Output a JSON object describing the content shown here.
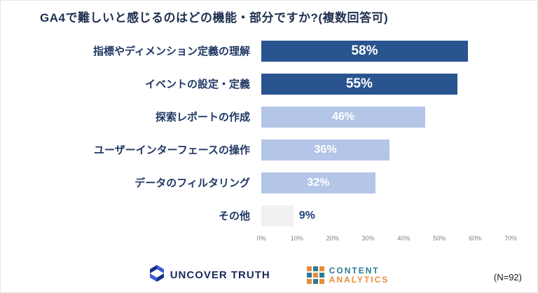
{
  "title": "GA4で難しいと感じるのはどの機能・部分ですか?(複数回答可)",
  "chart_data": {
    "type": "bar",
    "orientation": "horizontal",
    "title": "GA4で難しいと感じるのはどの機能・部分ですか?(複数回答可)",
    "categories": [
      "指標やディメンション定義の理解",
      "イベントの設定・定義",
      "探索レポートの作成",
      "ユーザーインターフェースの操作",
      "データのフィルタリング",
      "その他"
    ],
    "values": [
      58,
      55,
      46,
      36,
      32,
      9
    ],
    "value_labels": [
      "58%",
      "55%",
      "46%",
      "36%",
      "32%",
      "9%"
    ],
    "bar_colors": [
      "#2a5490",
      "#2a5490",
      "#b4c6e7",
      "#b4c6e7",
      "#b4c6e7",
      "#f1f1f1"
    ],
    "label_styles": [
      "inside-white",
      "inside-white",
      "inside-white",
      "inside-white",
      "inside-white",
      "outside-navy"
    ],
    "xlim": [
      0,
      70
    ],
    "x_ticks": [
      "0%",
      "10%",
      "20%",
      "30%",
      "40%",
      "50%",
      "60%",
      "70%"
    ],
    "xlabel": "",
    "ylabel": "",
    "legend": "none",
    "grid": "off"
  },
  "footer": {
    "uncover_truth_label": "UNCOVER TRUTH",
    "content_line1": "CONTENT",
    "content_line2": "ANALYTICS",
    "sample_note": "(N=92)"
  },
  "colors": {
    "dark_bar": "#2a5490",
    "light_bar": "#b4c6e7",
    "neutral_bar": "#f1f1f1",
    "label_inside": "#ffffff",
    "label_outside": "#1f3e78",
    "axis_text": "#7f7f7f",
    "title_text": "#1f3050",
    "category_text": "#203864",
    "logo_blue": "#3d5bd9",
    "logo_navy": "#16308a",
    "logo_teal": "#2c7b93",
    "logo_orange": "#e98c3a"
  }
}
